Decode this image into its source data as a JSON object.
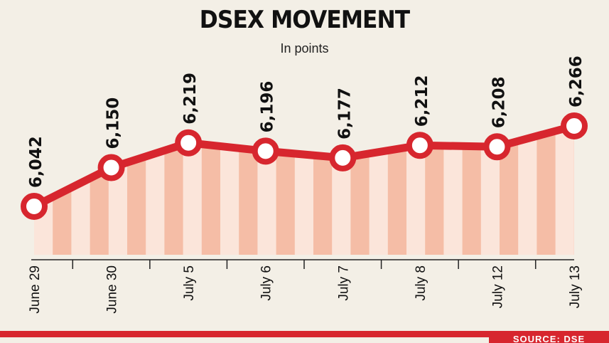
{
  "chart_data": {
    "type": "line",
    "title": "DSEX MOVEMENT",
    "subtitle": "In points",
    "categories": [
      "June 29",
      "June 30",
      "July 5",
      "July 6",
      "July 7",
      "July 8",
      "July 12",
      "July 13"
    ],
    "values": [
      6042,
      6150,
      6219,
      6196,
      6177,
      6212,
      6208,
      6266
    ],
    "value_labels": [
      "6,042",
      "6,150",
      "6,219",
      "6,196",
      "6,177",
      "6,212",
      "6,208",
      "6,266"
    ],
    "grid": false,
    "colors": {
      "line": "#d7262e",
      "area_stripe_dark": "#f5bda6",
      "area_stripe_light": "#fbe5da",
      "background": "#f3efe6"
    }
  },
  "footer": {
    "source": "SOURCE: DSE"
  }
}
